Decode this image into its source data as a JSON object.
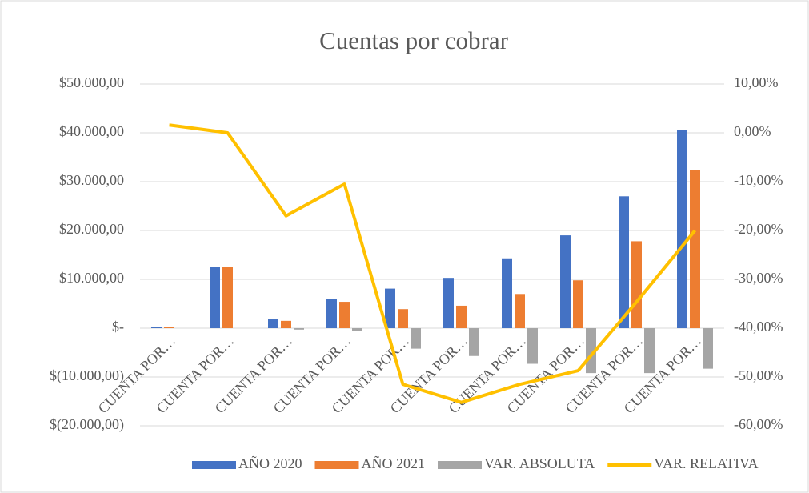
{
  "chart_data": {
    "type": "bar",
    "title": "Cuentas por cobrar",
    "categories": [
      "CUENTA POR…",
      "CUENTA POR…",
      "CUENTA POR…",
      "CUENTA POR…",
      "CUENTA POR…",
      "CUENTA POR…",
      "CUENTA POR…",
      "CUENTA POR…",
      "CUENTA POR…",
      "CUENTA POR…"
    ],
    "series": [
      {
        "name": "AÑO 2020",
        "color": "#4472c4",
        "values": [
          300,
          12500,
          1800,
          6000,
          8100,
          10300,
          14300,
          19000,
          27000,
          40600
        ]
      },
      {
        "name": "AÑO 2021",
        "color": "#ed7d31",
        "values": [
          300,
          12500,
          1500,
          5400,
          3900,
          4600,
          7000,
          9800,
          17800,
          32300
        ]
      },
      {
        "name": "VAR. ABSOLUTA",
        "color": "#a5a5a5",
        "values": [
          0,
          0,
          -300,
          -600,
          -4200,
          -5700,
          -7300,
          -9200,
          -9200,
          -8300
        ]
      },
      {
        "name": "VAR. RELATIVA",
        "color": "#ffc000",
        "type": "line",
        "axis": "y2",
        "values": [
          1.6,
          0,
          -17,
          -10.5,
          -51.5,
          -55.2,
          -51.5,
          -48.7,
          -34.6,
          -20
        ]
      }
    ],
    "ylim": [
      -20000,
      50000
    ],
    "yticks": [
      {
        "value": -20000,
        "label": "$(20.000,00)"
      },
      {
        "value": -10000,
        "label": "$(10.000,00)"
      },
      {
        "value": 0,
        "label": "$-"
      },
      {
        "value": 10000,
        "label": "$10.000,00"
      },
      {
        "value": 20000,
        "label": "$20.000,00"
      },
      {
        "value": 30000,
        "label": "$30.000,00"
      },
      {
        "value": 40000,
        "label": "$40.000,00"
      },
      {
        "value": 50000,
        "label": "$50.000,00"
      }
    ],
    "y2lim": [
      -60,
      10
    ],
    "y2ticks": [
      {
        "value": -60,
        "label": "-60,00%"
      },
      {
        "value": -50,
        "label": "-50,00%"
      },
      {
        "value": -40,
        "label": "-40,00%"
      },
      {
        "value": -30,
        "label": "-30,00%"
      },
      {
        "value": -20,
        "label": "-20,00%"
      },
      {
        "value": -10,
        "label": "-10,00%"
      },
      {
        "value": 0,
        "label": "0,00%"
      },
      {
        "value": 10,
        "label": "10,00%"
      }
    ],
    "grid": true,
    "legend": "bottom"
  }
}
